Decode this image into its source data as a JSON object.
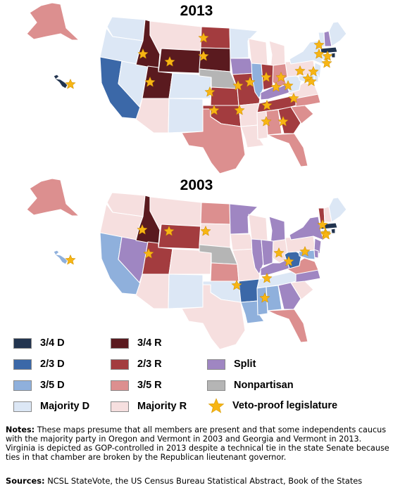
{
  "title_2013": "2013",
  "title_2003": "2003",
  "colors": {
    "d34": "#22344f",
    "d23": "#3b68a8",
    "d35": "#8fb0dc",
    "dmaj": "#dce7f5",
    "r34": "#5a1a1f",
    "r23": "#a33c3f",
    "r35": "#dc8f8f",
    "rmaj": "#f6dfdf",
    "split": "#9f86c2",
    "nonpartisan": "#b5b5b5",
    "star": "#f7b514",
    "border": "#ffffff"
  },
  "legend": [
    {
      "key": "d34",
      "label": "3/4 D"
    },
    {
      "key": "d23",
      "label": "2/3 D"
    },
    {
      "key": "d35",
      "label": "3/5 D"
    },
    {
      "key": "dmaj",
      "label": "Majority D"
    },
    {
      "key": "r34",
      "label": "3/4 R"
    },
    {
      "key": "r23",
      "label": "2/3 R"
    },
    {
      "key": "r35",
      "label": "3/5 R"
    },
    {
      "key": "rmaj",
      "label": "Majority R"
    },
    {
      "key": "split",
      "label": "Split"
    },
    {
      "key": "nonpartisan",
      "label": "Nonpartisan"
    },
    {
      "key": "star",
      "label": "Veto-proof legislature"
    }
  ],
  "maps": {
    "2013": {
      "WA": "dmaj",
      "OR": "dmaj",
      "CA": "d23",
      "NV": "dmaj",
      "ID": "r34",
      "MT": "rmaj",
      "WY": "r34",
      "UT": "r34",
      "AZ": "rmaj",
      "CO": "dmaj",
      "NM": "dmaj",
      "ND": "r23",
      "SD": "r34",
      "NE": "nonpartisan",
      "KS": "r23",
      "OK": "r23",
      "TX": "r35",
      "MN": "dmaj",
      "IA": "split",
      "MO": "r23",
      "AR": "rmaj",
      "LA": "rmaj",
      "WI": "rmaj",
      "IL": "d35",
      "MI": "rmaj",
      "IN": "r23",
      "OH": "r35",
      "KY": "split",
      "TN": "r23",
      "MS": "rmaj",
      "AL": "r35",
      "GA": "r23",
      "FL": "r35",
      "SC": "r35",
      "NC": "r35",
      "VA": "rmaj",
      "WV": "dmaj",
      "PA": "rmaj",
      "NY": "dmaj",
      "VT": "dmaj",
      "NH": "split",
      "ME": "dmaj",
      "MA": "d34",
      "RI": "d34",
      "CT": "dmaj",
      "NJ": "dmaj",
      "DE": "dmaj",
      "MD": "dmaj",
      "AK": "r35",
      "HI": "d34",
      "stars": [
        "ID",
        "WY",
        "UT",
        "ND",
        "SD",
        "KS",
        "OK",
        "MO",
        "IN",
        "TN",
        "GA",
        "AL",
        "MS",
        "IL",
        "KY",
        "WV",
        "VA",
        "MD",
        "DE",
        "NJ",
        "NY",
        "VT",
        "MA",
        "RI",
        "HI",
        "OH",
        "SC"
      ]
    },
    "2003": {
      "WA": "rmaj",
      "OR": "rmaj",
      "CA": "d35",
      "NV": "split",
      "ID": "r34",
      "MT": "rmaj",
      "WY": "r23",
      "UT": "r23",
      "AZ": "rmaj",
      "CO": "rmaj",
      "NM": "dmaj",
      "ND": "r35",
      "SD": "rmaj",
      "NE": "nonpartisan",
      "KS": "r35",
      "OK": "dmaj",
      "TX": "rmaj",
      "MN": "split",
      "IA": "rmaj",
      "MO": "rmaj",
      "AR": "d23",
      "LA": "d35",
      "WI": "rmaj",
      "IL": "split",
      "MI": "split",
      "IN": "split",
      "OH": "rmaj",
      "KY": "split",
      "TN": "dmaj",
      "MS": "d35",
      "AL": "d35",
      "GA": "split",
      "FL": "r35",
      "SC": "rmaj",
      "NC": "split",
      "VA": "r35",
      "WV": "d23",
      "PA": "rmaj",
      "NY": "split",
      "VT": "r23",
      "NH": "rmaj",
      "ME": "dmaj",
      "MA": "d34",
      "RI": "d34",
      "CT": "dmaj",
      "NJ": "split",
      "DE": "split",
      "MD": "d35",
      "AK": "r35",
      "HI": "d35",
      "stars": [
        "ID",
        "WY",
        "UT",
        "SD",
        "AR",
        "MS",
        "AL",
        "WV",
        "OH",
        "MD",
        "VT",
        "MA",
        "RI",
        "HI"
      ]
    }
  },
  "notes_label": "Notes:",
  "notes_text": "These maps presume that all members are present and that some independents caucus with the majority party in Oregon and Vermont in 2003 and Georgia and Vermont in 2013. Virginia is depicted as GOP-controlled in 2013 despite a technical tie in the state Senate because ties in that chamber are broken by the Republican lieutenant governor.",
  "sources_label": "Sources:",
  "sources_text": "NCSL StateVote, the US Census Bureau Statistical Abstract, Book of the States"
}
